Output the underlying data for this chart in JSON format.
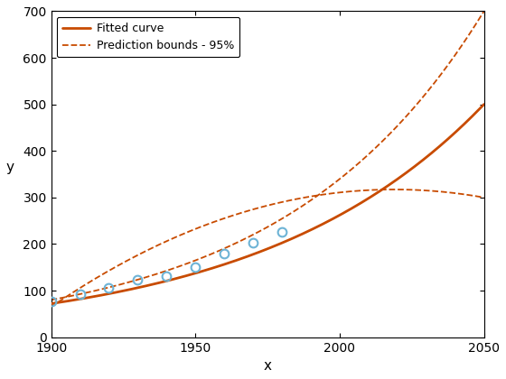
{
  "title": "",
  "xlabel": "x",
  "ylabel": "y",
  "xlim": [
    1900,
    2050
  ],
  "ylim": [
    0,
    700
  ],
  "xticks": [
    1900,
    1950,
    2000,
    2050
  ],
  "yticks": [
    0,
    100,
    200,
    300,
    400,
    500,
    600,
    700
  ],
  "data_x": [
    1900,
    1910,
    1920,
    1930,
    1940,
    1950,
    1960,
    1970,
    1980
  ],
  "data_y": [
    76,
    92,
    106,
    123,
    132,
    151,
    180,
    203,
    226
  ],
  "fit_color": "#C84B00",
  "bounds_color": "#C84B00",
  "data_color": "#6EB4D6",
  "legend_fitted": "Fitted curve",
  "legend_bounds": "Prediction bounds - 95%",
  "fit_lw": 2.0,
  "bounds_lw": 1.3,
  "bounds_ls": "--",
  "figsize": [
    5.6,
    4.2
  ],
  "dpi": 100,
  "fit_x_start": 1900,
  "fit_x_end": 2050,
  "fitted_at_1900": 72,
  "fitted_at_2050": 500,
  "upper_at_1900": 80,
  "upper_at_2050": 700,
  "lower_at_1900": 65,
  "lower_at_2050": 300,
  "lower_peak_x": 2030,
  "lower_peak_y": 315
}
